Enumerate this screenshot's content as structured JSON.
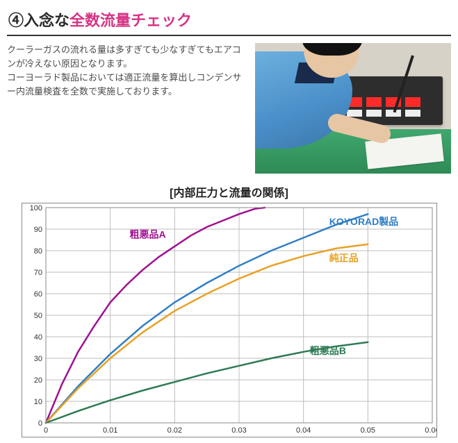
{
  "heading": {
    "prefix": "④入念な",
    "highlight": "全数流量チェック"
  },
  "description": {
    "p1": "クーラーガスの流れる量は多すぎても少なすぎてもエアコンが冷えない原因となります。",
    "p2": "コーヨーラド製品においては適正流量を算出しコンデンサー内流量検査を全数で実施しております。"
  },
  "chart": {
    "title": "[内部圧力と流量の関係]",
    "type": "line",
    "xlim": [
      0,
      0.06
    ],
    "ylim": [
      0,
      100
    ],
    "xtick_step": 0.01,
    "ytick_step": 10,
    "xtick_labels": [
      "0",
      "0.01",
      "0.02",
      "0.03",
      "0.04",
      "0.05",
      "0.06"
    ],
    "ytick_labels": [
      "0",
      "10",
      "20",
      "30",
      "40",
      "50",
      "60",
      "70",
      "80",
      "90",
      "100"
    ],
    "axis_fontsize": 11,
    "grid_color": "#bdbdbd",
    "border_color": "#888888",
    "background_color": "#ffffff",
    "line_width": 2.5,
    "series": [
      {
        "id": "souakuA",
        "label": "粗悪品A",
        "color": "#a01090",
        "label_pos": {
          "x": 0.013,
          "y": 86
        },
        "points": [
          [
            0,
            0
          ],
          [
            0.0025,
            18
          ],
          [
            0.005,
            33
          ],
          [
            0.0075,
            45
          ],
          [
            0.01,
            56
          ],
          [
            0.0125,
            64
          ],
          [
            0.015,
            71
          ],
          [
            0.0175,
            77
          ],
          [
            0.02,
            82
          ],
          [
            0.0225,
            87
          ],
          [
            0.025,
            91
          ],
          [
            0.0275,
            94
          ],
          [
            0.03,
            97
          ],
          [
            0.0325,
            99.5
          ],
          [
            0.034,
            100
          ]
        ]
      },
      {
        "id": "koyorad",
        "label": "KOYORAD製品",
        "color": "#2f7ec4",
        "label_pos": {
          "x": 0.044,
          "y": 92
        },
        "points": [
          [
            0,
            0
          ],
          [
            0.005,
            17
          ],
          [
            0.01,
            32
          ],
          [
            0.015,
            45
          ],
          [
            0.02,
            56
          ],
          [
            0.025,
            65
          ],
          [
            0.03,
            73
          ],
          [
            0.035,
            80
          ],
          [
            0.04,
            86
          ],
          [
            0.045,
            92
          ],
          [
            0.05,
            97
          ]
        ]
      },
      {
        "id": "junsei",
        "label": "純正品",
        "color": "#e8a124",
        "label_pos": {
          "x": 0.044,
          "y": 75
        },
        "points": [
          [
            0,
            0
          ],
          [
            0.005,
            16
          ],
          [
            0.01,
            30
          ],
          [
            0.015,
            42
          ],
          [
            0.02,
            52
          ],
          [
            0.025,
            60
          ],
          [
            0.03,
            67
          ],
          [
            0.035,
            73
          ],
          [
            0.04,
            77.5
          ],
          [
            0.045,
            81
          ],
          [
            0.05,
            83
          ]
        ]
      },
      {
        "id": "souakuB",
        "label": "粗悪品B",
        "color": "#2d7a54",
        "label_pos": {
          "x": 0.041,
          "y": 32
        },
        "points": [
          [
            0,
            0
          ],
          [
            0.005,
            5.5
          ],
          [
            0.01,
            10.5
          ],
          [
            0.015,
            15
          ],
          [
            0.02,
            19
          ],
          [
            0.025,
            23
          ],
          [
            0.03,
            26.5
          ],
          [
            0.035,
            30
          ],
          [
            0.04,
            33
          ],
          [
            0.045,
            35.5
          ],
          [
            0.05,
            37.5
          ]
        ]
      }
    ]
  }
}
